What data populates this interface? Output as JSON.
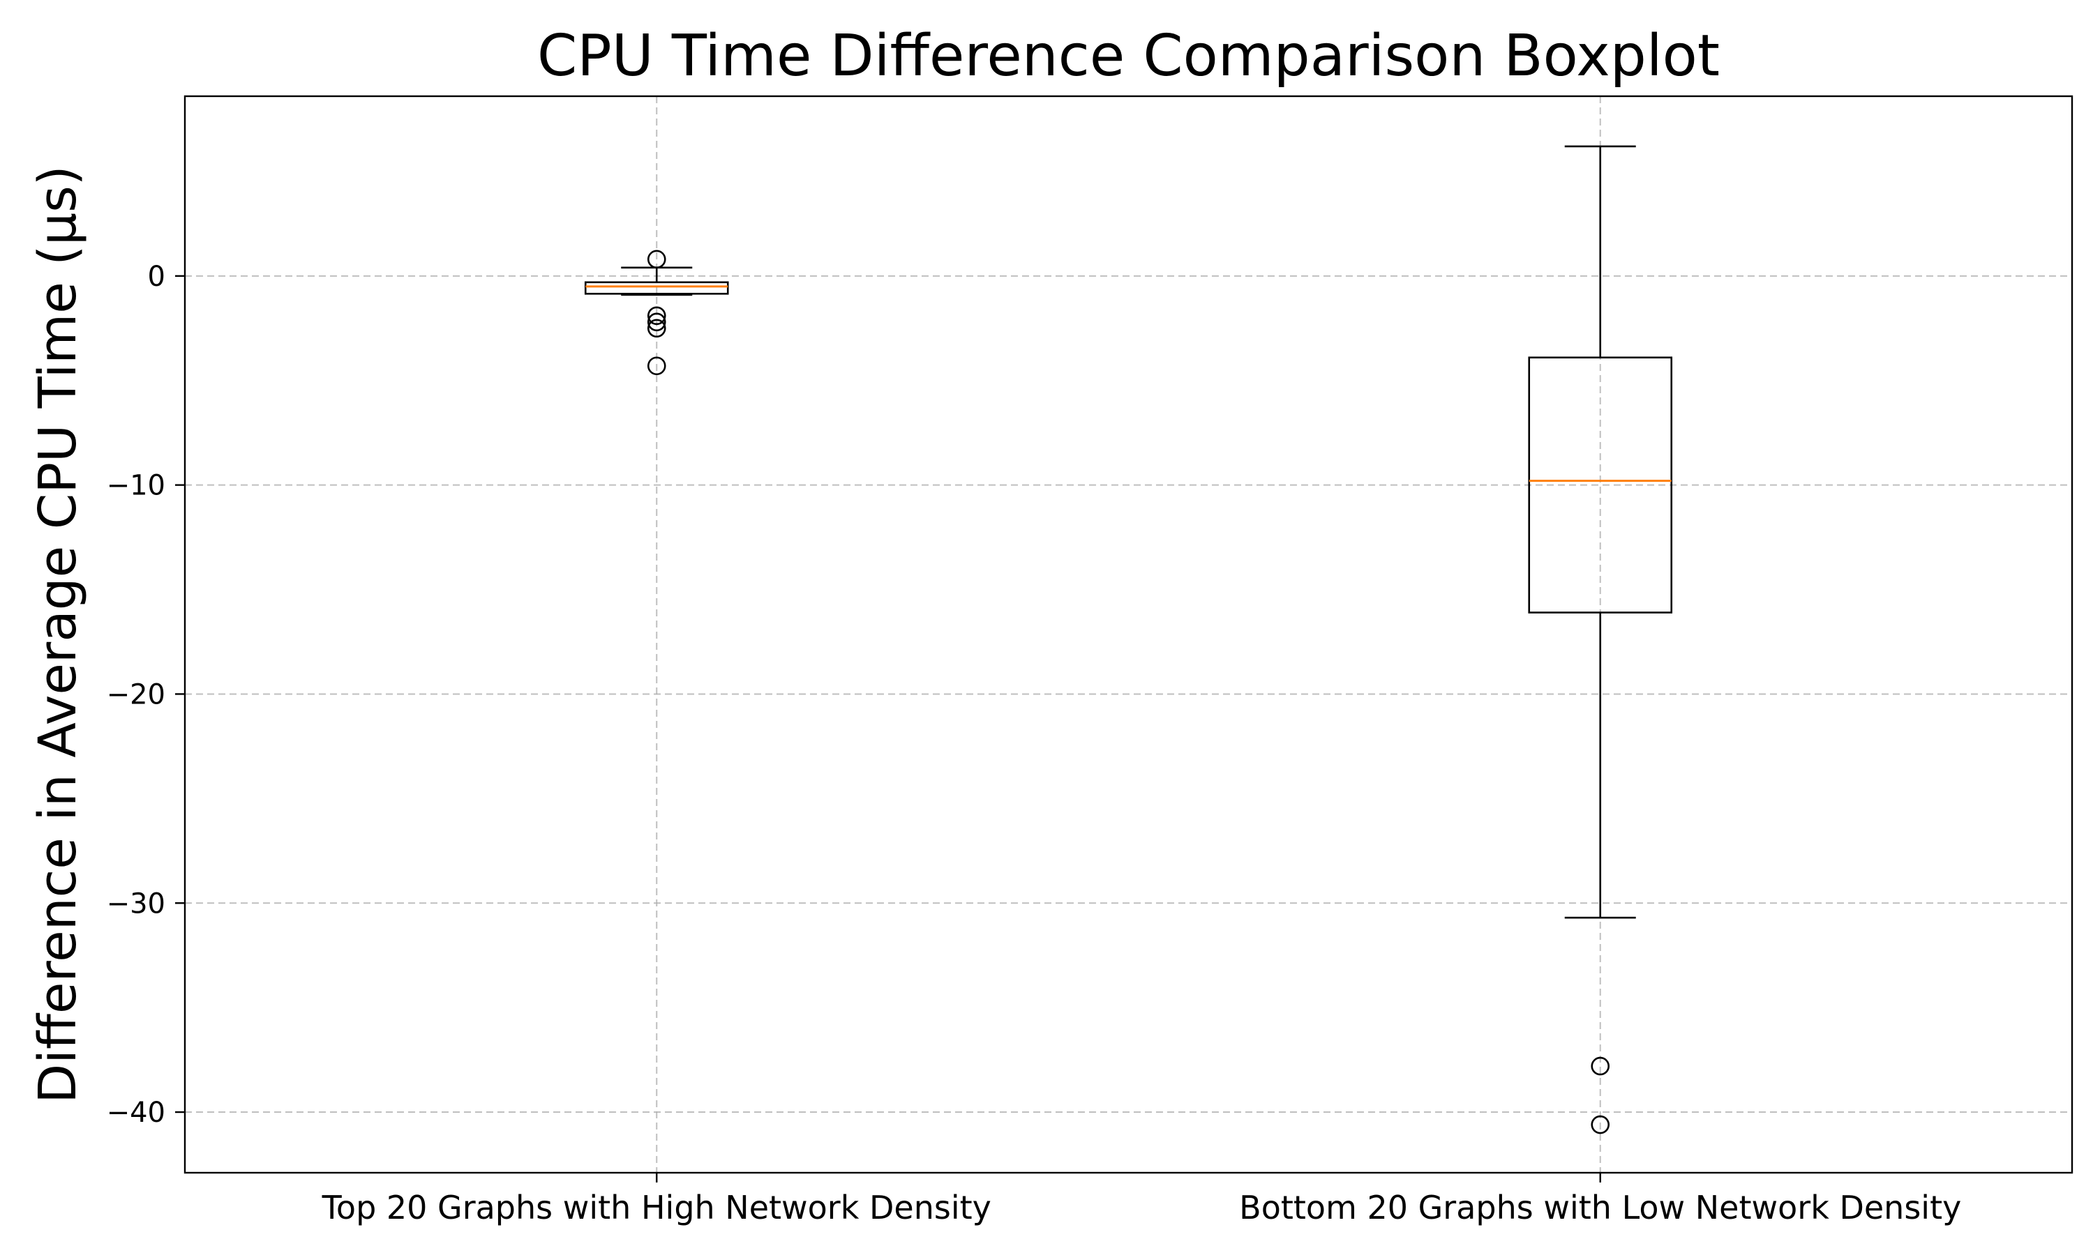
{
  "chart_data": {
    "type": "boxplot",
    "title": "CPU Time Difference Comparison Boxplot",
    "xlabel": "",
    "ylabel": "Difference in Average CPU Time (µs)",
    "categories": [
      "Top 20 Graphs with High Network Density",
      "Bottom 20 Graphs with Low Network Density"
    ],
    "boxes": [
      {
        "category": "Top 20 Graphs with High Network Density",
        "whisker_low": -0.9,
        "q1": -0.85,
        "median": -0.5,
        "q3": -0.3,
        "whisker_high": 0.4,
        "outliers": [
          0.8,
          -1.9,
          -2.2,
          -2.5,
          -4.3
        ]
      },
      {
        "category": "Bottom 20 Graphs with Low Network Density",
        "whisker_low": -30.7,
        "q1": -16.1,
        "median": -9.8,
        "q3": -3.9,
        "whisker_high": 6.2,
        "outliers": [
          -37.8,
          -40.6
        ]
      }
    ],
    "yticks": [
      0,
      -10,
      -20,
      -30,
      -40
    ],
    "ylim": [
      -42.9,
      8.6
    ],
    "grid": true,
    "colors": {
      "box": "#000000",
      "median": "#ff7f0e",
      "grid": "#b0b0b0"
    }
  }
}
